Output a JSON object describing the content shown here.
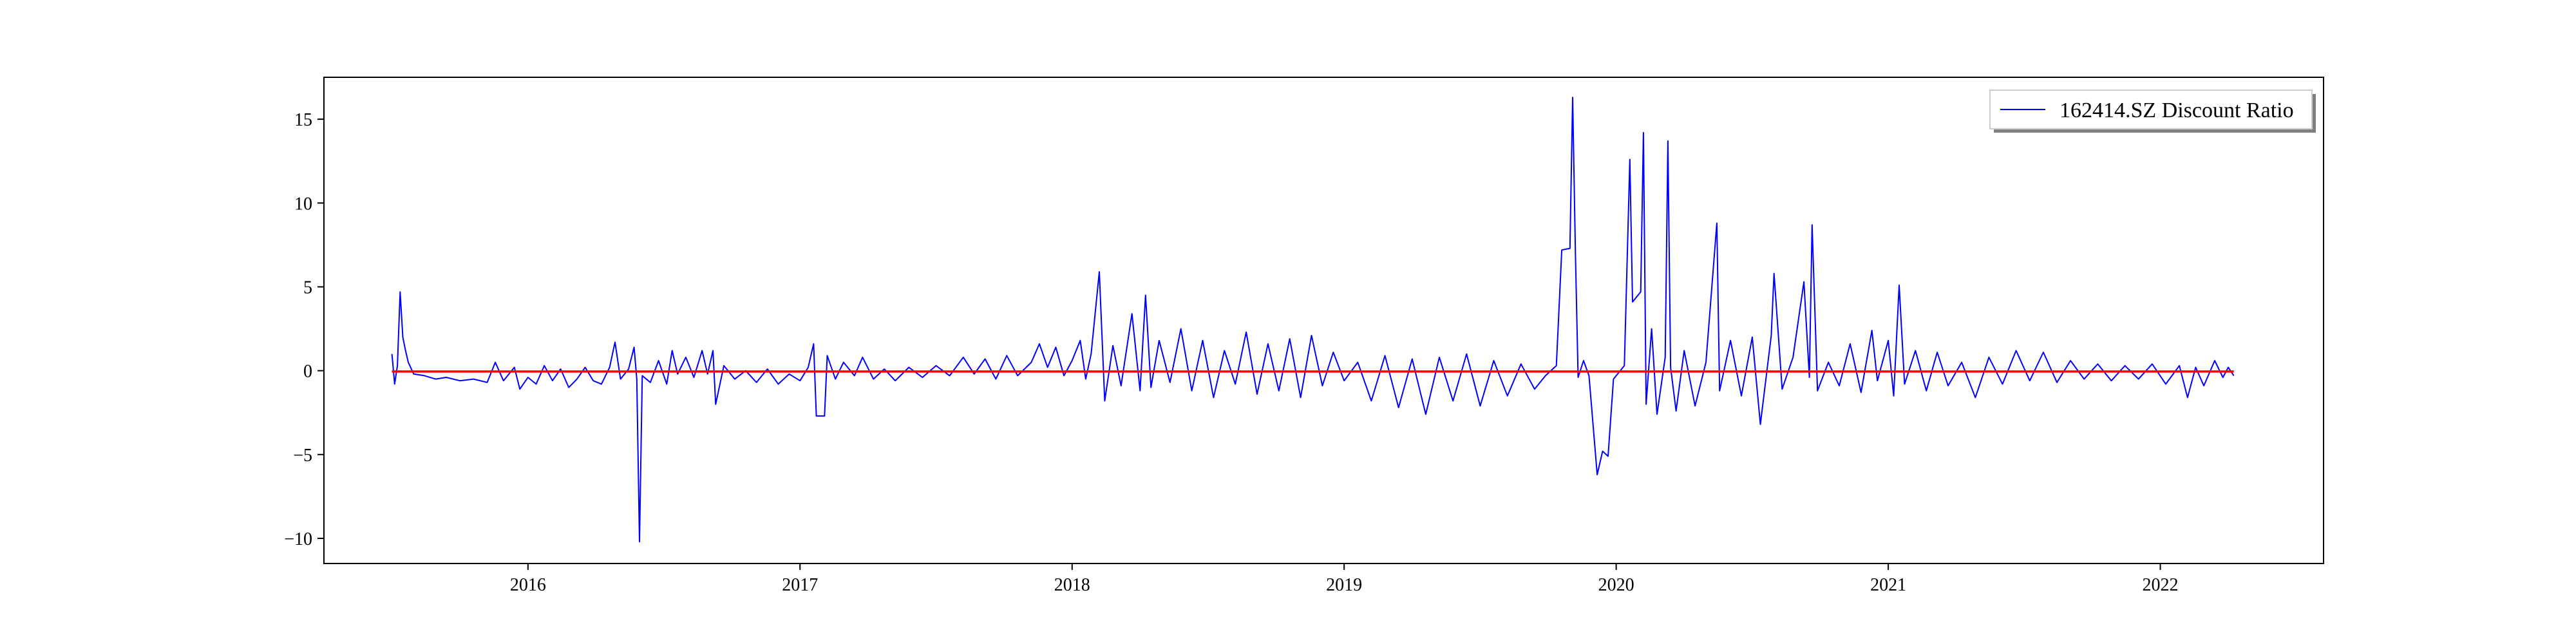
{
  "chart_data": {
    "type": "line",
    "title": "",
    "xlabel": "",
    "ylabel": "",
    "xlim": [
      2015.25,
      2022.6
    ],
    "ylim": [
      -11.5,
      17.5
    ],
    "x_ticks": [
      {
        "label": "2016",
        "value": 2016
      },
      {
        "label": "2017",
        "value": 2017
      },
      {
        "label": "2018",
        "value": 2018
      },
      {
        "label": "2019",
        "value": 2019
      },
      {
        "label": "2020",
        "value": 2020
      },
      {
        "label": "2021",
        "value": 2021
      },
      {
        "label": "2022",
        "value": 2022
      }
    ],
    "y_ticks": [
      {
        "label": "15",
        "value": 15
      },
      {
        "label": "10",
        "value": 10
      },
      {
        "label": "5",
        "value": 5
      },
      {
        "label": "0",
        "value": 0
      },
      {
        "label": "−5",
        "value": -5
      },
      {
        "label": "−10",
        "value": -10
      }
    ],
    "grid": false,
    "legend": {
      "position": "top-right"
    },
    "series": [
      {
        "name": "162414.SZ Discount Ratio",
        "color": "#0000ff",
        "points": [
          [
            2015.5,
            1.0
          ],
          [
            2015.51,
            -0.8
          ],
          [
            2015.52,
            0.3
          ],
          [
            2015.53,
            4.7
          ],
          [
            2015.54,
            2.0
          ],
          [
            2015.55,
            1.2
          ],
          [
            2015.56,
            0.5
          ],
          [
            2015.58,
            -0.2
          ],
          [
            2015.62,
            -0.3
          ],
          [
            2015.66,
            -0.5
          ],
          [
            2015.7,
            -0.4
          ],
          [
            2015.75,
            -0.6
          ],
          [
            2015.8,
            -0.5
          ],
          [
            2015.85,
            -0.7
          ],
          [
            2015.88,
            0.5
          ],
          [
            2015.91,
            -0.6
          ],
          [
            2015.95,
            0.2
          ],
          [
            2015.97,
            -1.1
          ],
          [
            2016.0,
            -0.4
          ],
          [
            2016.03,
            -0.8
          ],
          [
            2016.06,
            0.3
          ],
          [
            2016.09,
            -0.6
          ],
          [
            2016.12,
            0.1
          ],
          [
            2016.15,
            -1.0
          ],
          [
            2016.18,
            -0.5
          ],
          [
            2016.21,
            0.2
          ],
          [
            2016.24,
            -0.6
          ],
          [
            2016.27,
            -0.8
          ],
          [
            2016.3,
            0.2
          ],
          [
            2016.32,
            1.7
          ],
          [
            2016.34,
            -0.5
          ],
          [
            2016.37,
            0.1
          ],
          [
            2016.39,
            1.4
          ],
          [
            2016.4,
            -0.5
          ],
          [
            2016.41,
            -10.2
          ],
          [
            2016.42,
            -0.3
          ],
          [
            2016.45,
            -0.7
          ],
          [
            2016.48,
            0.6
          ],
          [
            2016.51,
            -0.8
          ],
          [
            2016.53,
            1.2
          ],
          [
            2016.55,
            -0.2
          ],
          [
            2016.58,
            0.8
          ],
          [
            2016.61,
            -0.4
          ],
          [
            2016.64,
            1.2
          ],
          [
            2016.66,
            -0.2
          ],
          [
            2016.68,
            1.2
          ],
          [
            2016.69,
            -2.0
          ],
          [
            2016.72,
            0.3
          ],
          [
            2016.76,
            -0.5
          ],
          [
            2016.8,
            0.0
          ],
          [
            2016.84,
            -0.7
          ],
          [
            2016.88,
            0.1
          ],
          [
            2016.92,
            -0.8
          ],
          [
            2016.96,
            -0.2
          ],
          [
            2017.0,
            -0.6
          ],
          [
            2017.03,
            0.2
          ],
          [
            2017.05,
            1.6
          ],
          [
            2017.06,
            -2.7
          ],
          [
            2017.09,
            -2.7
          ],
          [
            2017.1,
            0.9
          ],
          [
            2017.13,
            -0.5
          ],
          [
            2017.16,
            0.5
          ],
          [
            2017.2,
            -0.3
          ],
          [
            2017.23,
            0.8
          ],
          [
            2017.27,
            -0.5
          ],
          [
            2017.31,
            0.1
          ],
          [
            2017.35,
            -0.6
          ],
          [
            2017.4,
            0.2
          ],
          [
            2017.45,
            -0.4
          ],
          [
            2017.5,
            0.3
          ],
          [
            2017.55,
            -0.3
          ],
          [
            2017.6,
            0.8
          ],
          [
            2017.64,
            -0.2
          ],
          [
            2017.68,
            0.7
          ],
          [
            2017.72,
            -0.5
          ],
          [
            2017.76,
            0.9
          ],
          [
            2017.8,
            -0.3
          ],
          [
            2017.85,
            0.5
          ],
          [
            2017.88,
            1.6
          ],
          [
            2017.91,
            0.2
          ],
          [
            2017.94,
            1.4
          ],
          [
            2017.97,
            -0.3
          ],
          [
            2018.0,
            0.6
          ],
          [
            2018.03,
            1.8
          ],
          [
            2018.05,
            -0.5
          ],
          [
            2018.07,
            1.0
          ],
          [
            2018.1,
            5.9
          ],
          [
            2018.12,
            -1.8
          ],
          [
            2018.15,
            1.5
          ],
          [
            2018.18,
            -0.9
          ],
          [
            2018.22,
            3.4
          ],
          [
            2018.25,
            -1.2
          ],
          [
            2018.27,
            4.5
          ],
          [
            2018.29,
            -1.0
          ],
          [
            2018.32,
            1.8
          ],
          [
            2018.36,
            -0.7
          ],
          [
            2018.4,
            2.5
          ],
          [
            2018.44,
            -1.2
          ],
          [
            2018.48,
            1.8
          ],
          [
            2018.52,
            -1.6
          ],
          [
            2018.56,
            1.2
          ],
          [
            2018.6,
            -0.8
          ],
          [
            2018.64,
            2.3
          ],
          [
            2018.68,
            -1.4
          ],
          [
            2018.72,
            1.6
          ],
          [
            2018.76,
            -1.2
          ],
          [
            2018.8,
            1.9
          ],
          [
            2018.84,
            -1.6
          ],
          [
            2018.88,
            2.1
          ],
          [
            2018.92,
            -0.9
          ],
          [
            2018.96,
            1.1
          ],
          [
            2019.0,
            -0.6
          ],
          [
            2019.05,
            0.5
          ],
          [
            2019.1,
            -1.8
          ],
          [
            2019.15,
            0.9
          ],
          [
            2019.2,
            -2.2
          ],
          [
            2019.25,
            0.7
          ],
          [
            2019.3,
            -2.6
          ],
          [
            2019.35,
            0.8
          ],
          [
            2019.4,
            -1.8
          ],
          [
            2019.45,
            1.0
          ],
          [
            2019.5,
            -2.1
          ],
          [
            2019.55,
            0.6
          ],
          [
            2019.6,
            -1.5
          ],
          [
            2019.65,
            0.4
          ],
          [
            2019.7,
            -1.1
          ],
          [
            2019.74,
            -0.3
          ],
          [
            2019.78,
            0.3
          ],
          [
            2019.8,
            7.2
          ],
          [
            2019.83,
            7.3
          ],
          [
            2019.84,
            16.3
          ],
          [
            2019.85,
            7.0
          ],
          [
            2019.86,
            -0.4
          ],
          [
            2019.88,
            0.6
          ],
          [
            2019.9,
            -0.3
          ],
          [
            2019.93,
            -6.2
          ],
          [
            2019.95,
            -4.8
          ],
          [
            2019.97,
            -5.1
          ],
          [
            2019.99,
            -0.5
          ],
          [
            2020.03,
            0.3
          ],
          [
            2020.05,
            12.6
          ],
          [
            2020.06,
            4.1
          ],
          [
            2020.09,
            4.7
          ],
          [
            2020.1,
            14.2
          ],
          [
            2020.11,
            -2.0
          ],
          [
            2020.13,
            2.5
          ],
          [
            2020.15,
            -2.6
          ],
          [
            2020.18,
            0.8
          ],
          [
            2020.19,
            13.7
          ],
          [
            2020.2,
            0.2
          ],
          [
            2020.22,
            -2.4
          ],
          [
            2020.25,
            1.2
          ],
          [
            2020.29,
            -2.1
          ],
          [
            2020.33,
            0.5
          ],
          [
            2020.37,
            8.8
          ],
          [
            2020.38,
            -1.2
          ],
          [
            2020.42,
            1.8
          ],
          [
            2020.46,
            -1.5
          ],
          [
            2020.5,
            2.0
          ],
          [
            2020.53,
            -3.2
          ],
          [
            2020.57,
            2.1
          ],
          [
            2020.58,
            5.8
          ],
          [
            2020.61,
            -1.1
          ],
          [
            2020.65,
            0.8
          ],
          [
            2020.69,
            5.3
          ],
          [
            2020.71,
            -0.4
          ],
          [
            2020.72,
            8.7
          ],
          [
            2020.74,
            -1.2
          ],
          [
            2020.78,
            0.5
          ],
          [
            2020.82,
            -0.9
          ],
          [
            2020.86,
            1.6
          ],
          [
            2020.9,
            -1.3
          ],
          [
            2020.94,
            2.4
          ],
          [
            2020.96,
            -0.6
          ],
          [
            2021.0,
            1.8
          ],
          [
            2021.02,
            -1.5
          ],
          [
            2021.04,
            5.1
          ],
          [
            2021.06,
            -0.8
          ],
          [
            2021.1,
            1.2
          ],
          [
            2021.14,
            -1.2
          ],
          [
            2021.18,
            1.1
          ],
          [
            2021.22,
            -0.9
          ],
          [
            2021.27,
            0.5
          ],
          [
            2021.32,
            -1.6
          ],
          [
            2021.37,
            0.8
          ],
          [
            2021.42,
            -0.8
          ],
          [
            2021.47,
            1.2
          ],
          [
            2021.52,
            -0.6
          ],
          [
            2021.57,
            1.1
          ],
          [
            2021.62,
            -0.7
          ],
          [
            2021.67,
            0.6
          ],
          [
            2021.72,
            -0.5
          ],
          [
            2021.77,
            0.4
          ],
          [
            2021.82,
            -0.6
          ],
          [
            2021.87,
            0.3
          ],
          [
            2021.92,
            -0.5
          ],
          [
            2021.97,
            0.4
          ],
          [
            2022.02,
            -0.8
          ],
          [
            2022.07,
            0.3
          ],
          [
            2022.1,
            -1.6
          ],
          [
            2022.13,
            0.2
          ],
          [
            2022.16,
            -0.9
          ],
          [
            2022.2,
            0.6
          ],
          [
            2022.23,
            -0.4
          ],
          [
            2022.25,
            0.2
          ],
          [
            2022.27,
            -0.3
          ]
        ]
      },
      {
        "name": "",
        "color": "#ff0000",
        "points": [
          [
            2015.5,
            -0.05
          ],
          [
            2022.27,
            -0.05
          ]
        ]
      }
    ]
  }
}
